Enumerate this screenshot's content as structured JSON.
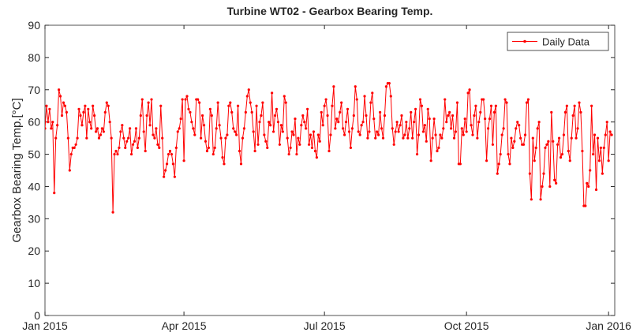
{
  "chart_data": {
    "type": "line",
    "title": "Turbine WT02 - Gearbox Bearing Temp.",
    "ylabel": "Gearbox Bearing Temp.[°C]",
    "xlim": [
      0,
      369
    ],
    "xticks": [
      {
        "value": 0,
        "label": "Jan 2015"
      },
      {
        "value": 90,
        "label": "Apr 2015"
      },
      {
        "value": 181,
        "label": "Jul 2015"
      },
      {
        "value": 273,
        "label": "Oct 2015"
      },
      {
        "value": 365,
        "label": "Jan 2016"
      }
    ],
    "ylim": [
      0,
      90
    ],
    "yticks": [
      0,
      10,
      20,
      30,
      40,
      50,
      60,
      70,
      80,
      90
    ],
    "grid": false,
    "legend": "northeast",
    "series": [
      {
        "name": "Daily Data",
        "color": "#ff0000",
        "values": [
          58,
          65,
          60,
          64,
          58,
          60,
          38,
          55,
          59,
          70,
          68,
          62,
          66,
          65,
          63,
          55,
          45,
          50,
          52,
          52,
          53,
          55,
          64,
          62,
          59,
          63,
          65,
          55,
          64,
          60,
          58,
          65,
          62,
          57,
          58,
          55,
          56,
          58,
          57,
          63,
          66,
          65,
          60,
          55,
          32,
          50,
          51,
          50,
          52,
          57,
          59,
          55,
          52,
          54,
          55,
          58,
          50,
          53,
          54,
          58,
          52,
          55,
          62,
          67,
          57,
          51,
          62,
          66,
          59,
          67,
          56,
          55,
          58,
          53,
          52,
          65,
          55,
          43,
          45,
          47,
          50,
          51,
          50,
          47,
          43,
          52,
          57,
          58,
          61,
          67,
          48,
          67,
          68,
          64,
          63,
          60,
          58,
          56,
          67,
          67,
          66,
          55,
          62,
          59,
          54,
          51,
          52,
          64,
          62,
          50,
          52,
          58,
          66,
          59,
          55,
          49,
          47,
          55,
          56,
          65,
          66,
          63,
          58,
          57,
          56,
          65,
          51,
          47,
          55,
          58,
          63,
          68,
          70,
          66,
          63,
          57,
          51,
          65,
          53,
          60,
          62,
          66,
          56,
          54,
          52,
          60,
          59,
          69,
          57,
          62,
          64,
          60,
          53,
          59,
          57,
          68,
          66,
          55,
          50,
          52,
          57,
          56,
          61,
          50,
          55,
          53,
          59,
          62,
          60,
          58,
          64,
          53,
          56,
          52,
          57,
          51,
          49,
          56,
          54,
          63,
          59,
          65,
          67,
          62,
          51,
          56,
          65,
          71,
          58,
          61,
          60,
          63,
          66,
          58,
          56,
          60,
          64,
          57,
          52,
          58,
          62,
          71,
          67,
          57,
          56,
          59,
          60,
          68,
          62,
          55,
          57,
          66,
          69,
          61,
          55,
          57,
          56,
          63,
          58,
          55,
          62,
          71,
          72,
          72,
          68,
          58,
          53,
          57,
          60,
          57,
          59,
          62,
          55,
          56,
          60,
          55,
          58,
          63,
          55,
          60,
          64,
          50,
          56,
          67,
          65,
          57,
          59,
          54,
          64,
          61,
          48,
          55,
          61,
          56,
          51,
          52,
          56,
          55,
          58,
          67,
          60,
          62,
          63,
          58,
          62,
          55,
          57,
          66,
          47,
          47,
          58,
          56,
          61,
          57,
          69,
          70,
          59,
          56,
          62,
          65,
          55,
          60,
          63,
          67,
          67,
          61,
          48,
          58,
          61,
          65,
          53,
          63,
          65,
          44,
          47,
          50,
          56,
          58,
          67,
          66,
          50,
          47,
          55,
          52,
          54,
          58,
          60,
          59,
          55,
          53,
          53,
          56,
          66,
          67,
          44,
          36,
          55,
          48,
          52,
          58,
          60,
          36,
          40,
          44,
          52,
          53,
          54,
          40,
          63,
          54,
          42,
          41,
          53,
          55,
          49,
          50,
          56,
          63,
          65,
          51,
          48,
          55,
          62,
          65,
          55,
          58,
          66,
          63,
          51,
          34,
          34,
          41,
          40,
          45,
          65,
          50,
          56,
          39,
          55,
          48,
          52,
          44,
          52,
          56,
          60,
          48,
          57,
          56
        ]
      }
    ]
  }
}
